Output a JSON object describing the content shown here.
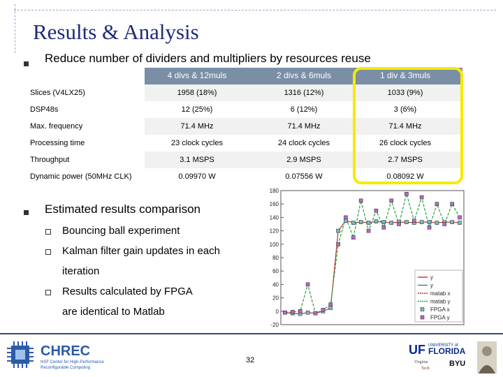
{
  "slide": {
    "title": "Results & Analysis",
    "bullet1": "Reduce number of dividers and multipliers by resources reuse",
    "bullet2": "Estimated results comparison",
    "sub1": "Bouncing ball experiment",
    "sub2a": "Kalman filter gain updates in each",
    "sub2b": "iteration",
    "sub3a": "Results calculated by FPGA",
    "sub3b": "are identical to Matlab",
    "page_number": "32"
  },
  "table": {
    "headers": [
      "4 divs & 12muls",
      "2 divs & 6muls",
      "1 div & 3muls"
    ],
    "rows": [
      {
        "label": "Slices (V4LX25)",
        "values": [
          "1958 (18%)",
          "1316 (12%)",
          "1033 (9%)"
        ]
      },
      {
        "label": "DSP48s",
        "values": [
          "12  (25%)",
          "6  (12%)",
          "3 (6%)"
        ]
      },
      {
        "label": "Max. frequency",
        "values": [
          "71.4 MHz",
          "71.4 MHz",
          "71.4 MHz"
        ]
      },
      {
        "label": "Processing time",
        "values": [
          "23 clock cycles",
          "24 clock cycles",
          "26 clock cycles"
        ]
      },
      {
        "label": "Throughput",
        "values": [
          "3.1 MSPS",
          "2.9 MSPS",
          "2.7 MSPS"
        ]
      },
      {
        "label": "Dynamic power (50MHz CLK)",
        "values": [
          "0.09970  W",
          "0.07556 W",
          "0.08092 W"
        ]
      }
    ]
  },
  "colors": {
    "title": "#1f2a7a",
    "header_bg": "#7a8fa6",
    "highlight": "#f5ea00",
    "footer": "#3b4a7a"
  },
  "chart_data": {
    "type": "line",
    "ylim": [
      -20,
      180
    ],
    "yticks": [
      "180",
      "160",
      "140",
      "120",
      "100",
      "80",
      "60",
      "40",
      "20",
      "0",
      "-20"
    ],
    "legend": [
      "y",
      "y",
      "matab x",
      "matab y",
      "FPGA x",
      "FPGA y"
    ],
    "legend_position": "bottom-right",
    "series": [
      {
        "name": "matab x",
        "values": [
          -2,
          -3,
          -4,
          -2,
          -3,
          0,
          5,
          120,
          135,
          132,
          133,
          132,
          134,
          133,
          132,
          133,
          133,
          132,
          133,
          133,
          132,
          133,
          133,
          132
        ]
      },
      {
        "name": "matab y",
        "values": [
          -2,
          -1,
          0,
          40,
          -3,
          2,
          10,
          100,
          140,
          110,
          165,
          120,
          150,
          125,
          165,
          130,
          175,
          135,
          170,
          125,
          160,
          130,
          160,
          140
        ]
      },
      {
        "name": "FPGA x",
        "values": [
          -2,
          -3,
          -4,
          -2,
          -3,
          0,
          5,
          120,
          135,
          132,
          133,
          132,
          134,
          133,
          132,
          133,
          133,
          132,
          133,
          133,
          132,
          133,
          133,
          132
        ]
      },
      {
        "name": "FPGA y",
        "values": [
          -2,
          -1,
          0,
          40,
          -3,
          2,
          10,
          100,
          140,
          110,
          165,
          120,
          150,
          125,
          165,
          130,
          175,
          135,
          170,
          125,
          160,
          130,
          160,
          140
        ]
      }
    ]
  },
  "logos": {
    "chrec_name": "CHREC",
    "chrec_sub1": "NSF Center for High-Performance",
    "chrec_sub2": "Reconfigurable Computing",
    "uf": "UF",
    "uf_sub1": "UNIVERSITY of",
    "uf_sub2": "FLORIDA",
    "vt_a": "Virginia",
    "vt_b": "Tech",
    "byu": "BYU"
  }
}
